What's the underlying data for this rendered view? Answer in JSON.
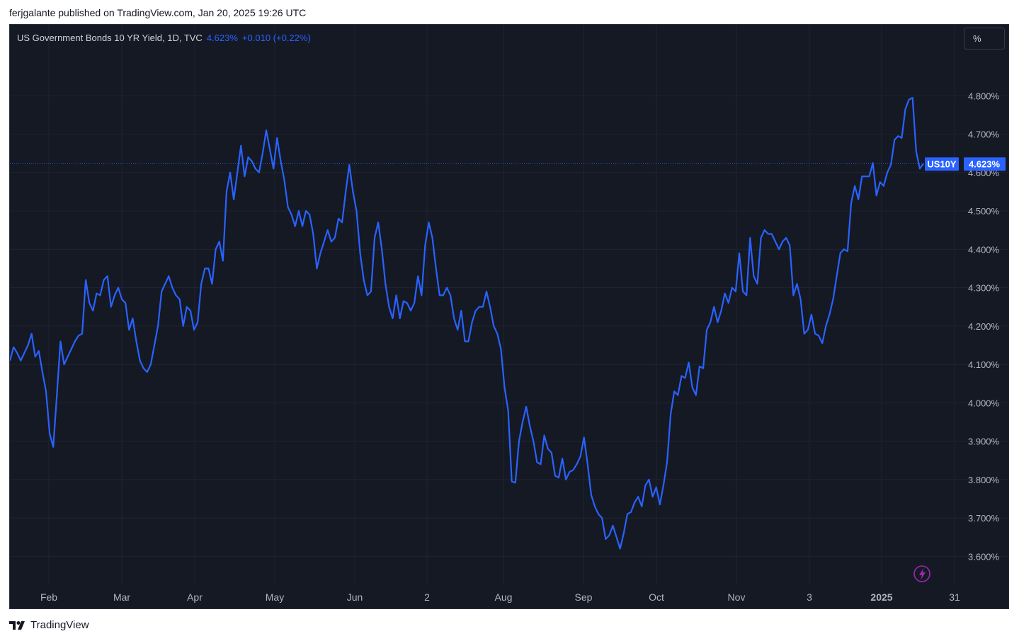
{
  "header": {
    "published_text": "ferjgalante published on TradingView.com, Jan 20, 2025 19:26 UTC"
  },
  "legend": {
    "symbol_text": "US Government Bonds 10 YR Yield, 1D, TVC",
    "last_value": "4.623%",
    "change": "+0.010 (+0.22%)"
  },
  "unit_button": {
    "label": "%"
  },
  "price_label": {
    "ticker": "US10Y",
    "value": "4.623%"
  },
  "footer": {
    "brand": "TradingView"
  },
  "icons": {
    "flash": "lightning-icon",
    "logo": "tradingview-logo-icon"
  },
  "colors": {
    "background": "#151924",
    "line": "#2962ff",
    "grid": "#1f2431",
    "axis_text": "#b2b5be",
    "label_bg": "#2962ff"
  },
  "chart_data": {
    "type": "line",
    "title": "US Government Bonds 10 YR Yield, 1D, TVC",
    "x_tick_labels": [
      "Feb",
      "Mar",
      "Apr",
      "May",
      "Jun",
      "2",
      "Aug",
      "Sep",
      "Oct",
      "Nov",
      "3",
      "2025",
      "31"
    ],
    "y_tick_labels": [
      "4.800%",
      "4.700%",
      "4.600%",
      "4.500%",
      "4.400%",
      "4.300%",
      "4.200%",
      "4.100%",
      "4.000%",
      "3.900%",
      "3.800%",
      "3.700%",
      "3.600%"
    ],
    "ylim": [
      3.525,
      4.985
    ],
    "grid": true,
    "last_value": 4.623,
    "series": [
      {
        "x_range": [
          "2024-01-19",
          "2025-01-17"
        ],
        "values": [
          4.11,
          4.145,
          4.13,
          4.11,
          4.13,
          4.15,
          4.18,
          4.12,
          4.135,
          4.08,
          4.03,
          3.92,
          3.885,
          4.02,
          4.16,
          4.1,
          4.12,
          4.14,
          4.16,
          4.175,
          4.18,
          4.32,
          4.26,
          4.24,
          4.285,
          4.28,
          4.32,
          4.33,
          4.25,
          4.28,
          4.3,
          4.27,
          4.26,
          4.19,
          4.22,
          4.16,
          4.11,
          4.09,
          4.08,
          4.1,
          4.15,
          4.2,
          4.29,
          4.31,
          4.33,
          4.3,
          4.28,
          4.27,
          4.2,
          4.25,
          4.24,
          4.19,
          4.21,
          4.31,
          4.35,
          4.35,
          4.31,
          4.4,
          4.42,
          4.37,
          4.55,
          4.6,
          4.53,
          4.6,
          4.67,
          4.59,
          4.64,
          4.63,
          4.61,
          4.6,
          4.65,
          4.71,
          4.66,
          4.61,
          4.69,
          4.63,
          4.58,
          4.51,
          4.49,
          4.46,
          4.5,
          4.46,
          4.5,
          4.49,
          4.44,
          4.35,
          4.39,
          4.42,
          4.45,
          4.42,
          4.43,
          4.48,
          4.47,
          4.55,
          4.62,
          4.55,
          4.5,
          4.39,
          4.32,
          4.28,
          4.29,
          4.43,
          4.47,
          4.4,
          4.31,
          4.25,
          4.22,
          4.28,
          4.22,
          4.265,
          4.26,
          4.24,
          4.26,
          4.33,
          4.28,
          4.41,
          4.47,
          4.43,
          4.35,
          4.28,
          4.28,
          4.3,
          4.28,
          4.22,
          4.19,
          4.24,
          4.16,
          4.16,
          4.21,
          4.24,
          4.25,
          4.25,
          4.29,
          4.25,
          4.2,
          4.18,
          4.14,
          4.04,
          3.98,
          3.795,
          3.792,
          3.9,
          3.95,
          3.99,
          3.94,
          3.9,
          3.845,
          3.84,
          3.915,
          3.88,
          3.87,
          3.81,
          3.805,
          3.855,
          3.8,
          3.82,
          3.825,
          3.84,
          3.86,
          3.91,
          3.84,
          3.76,
          3.73,
          3.71,
          3.7,
          3.645,
          3.655,
          3.68,
          3.65,
          3.62,
          3.66,
          3.71,
          3.715,
          3.74,
          3.755,
          3.73,
          3.785,
          3.8,
          3.755,
          3.78,
          3.735,
          3.785,
          3.845,
          3.97,
          4.03,
          4.02,
          4.07,
          4.065,
          4.105,
          4.04,
          4.02,
          4.095,
          4.09,
          4.19,
          4.21,
          4.25,
          4.21,
          4.24,
          4.285,
          4.26,
          4.3,
          4.29,
          4.39,
          4.29,
          4.28,
          4.43,
          4.33,
          4.31,
          4.43,
          4.45,
          4.44,
          4.44,
          4.42,
          4.4,
          4.42,
          4.43,
          4.41,
          4.28,
          4.31,
          4.27,
          4.18,
          4.19,
          4.23,
          4.18,
          4.175,
          4.155,
          4.2,
          4.23,
          4.27,
          4.33,
          4.39,
          4.4,
          4.395,
          4.52,
          4.565,
          4.53,
          4.59,
          4.59,
          4.59,
          4.625,
          4.54,
          4.575,
          4.565,
          4.6,
          4.62,
          4.685,
          4.695,
          4.69,
          4.765,
          4.79,
          4.795,
          4.655,
          4.61,
          4.623
        ]
      }
    ]
  }
}
